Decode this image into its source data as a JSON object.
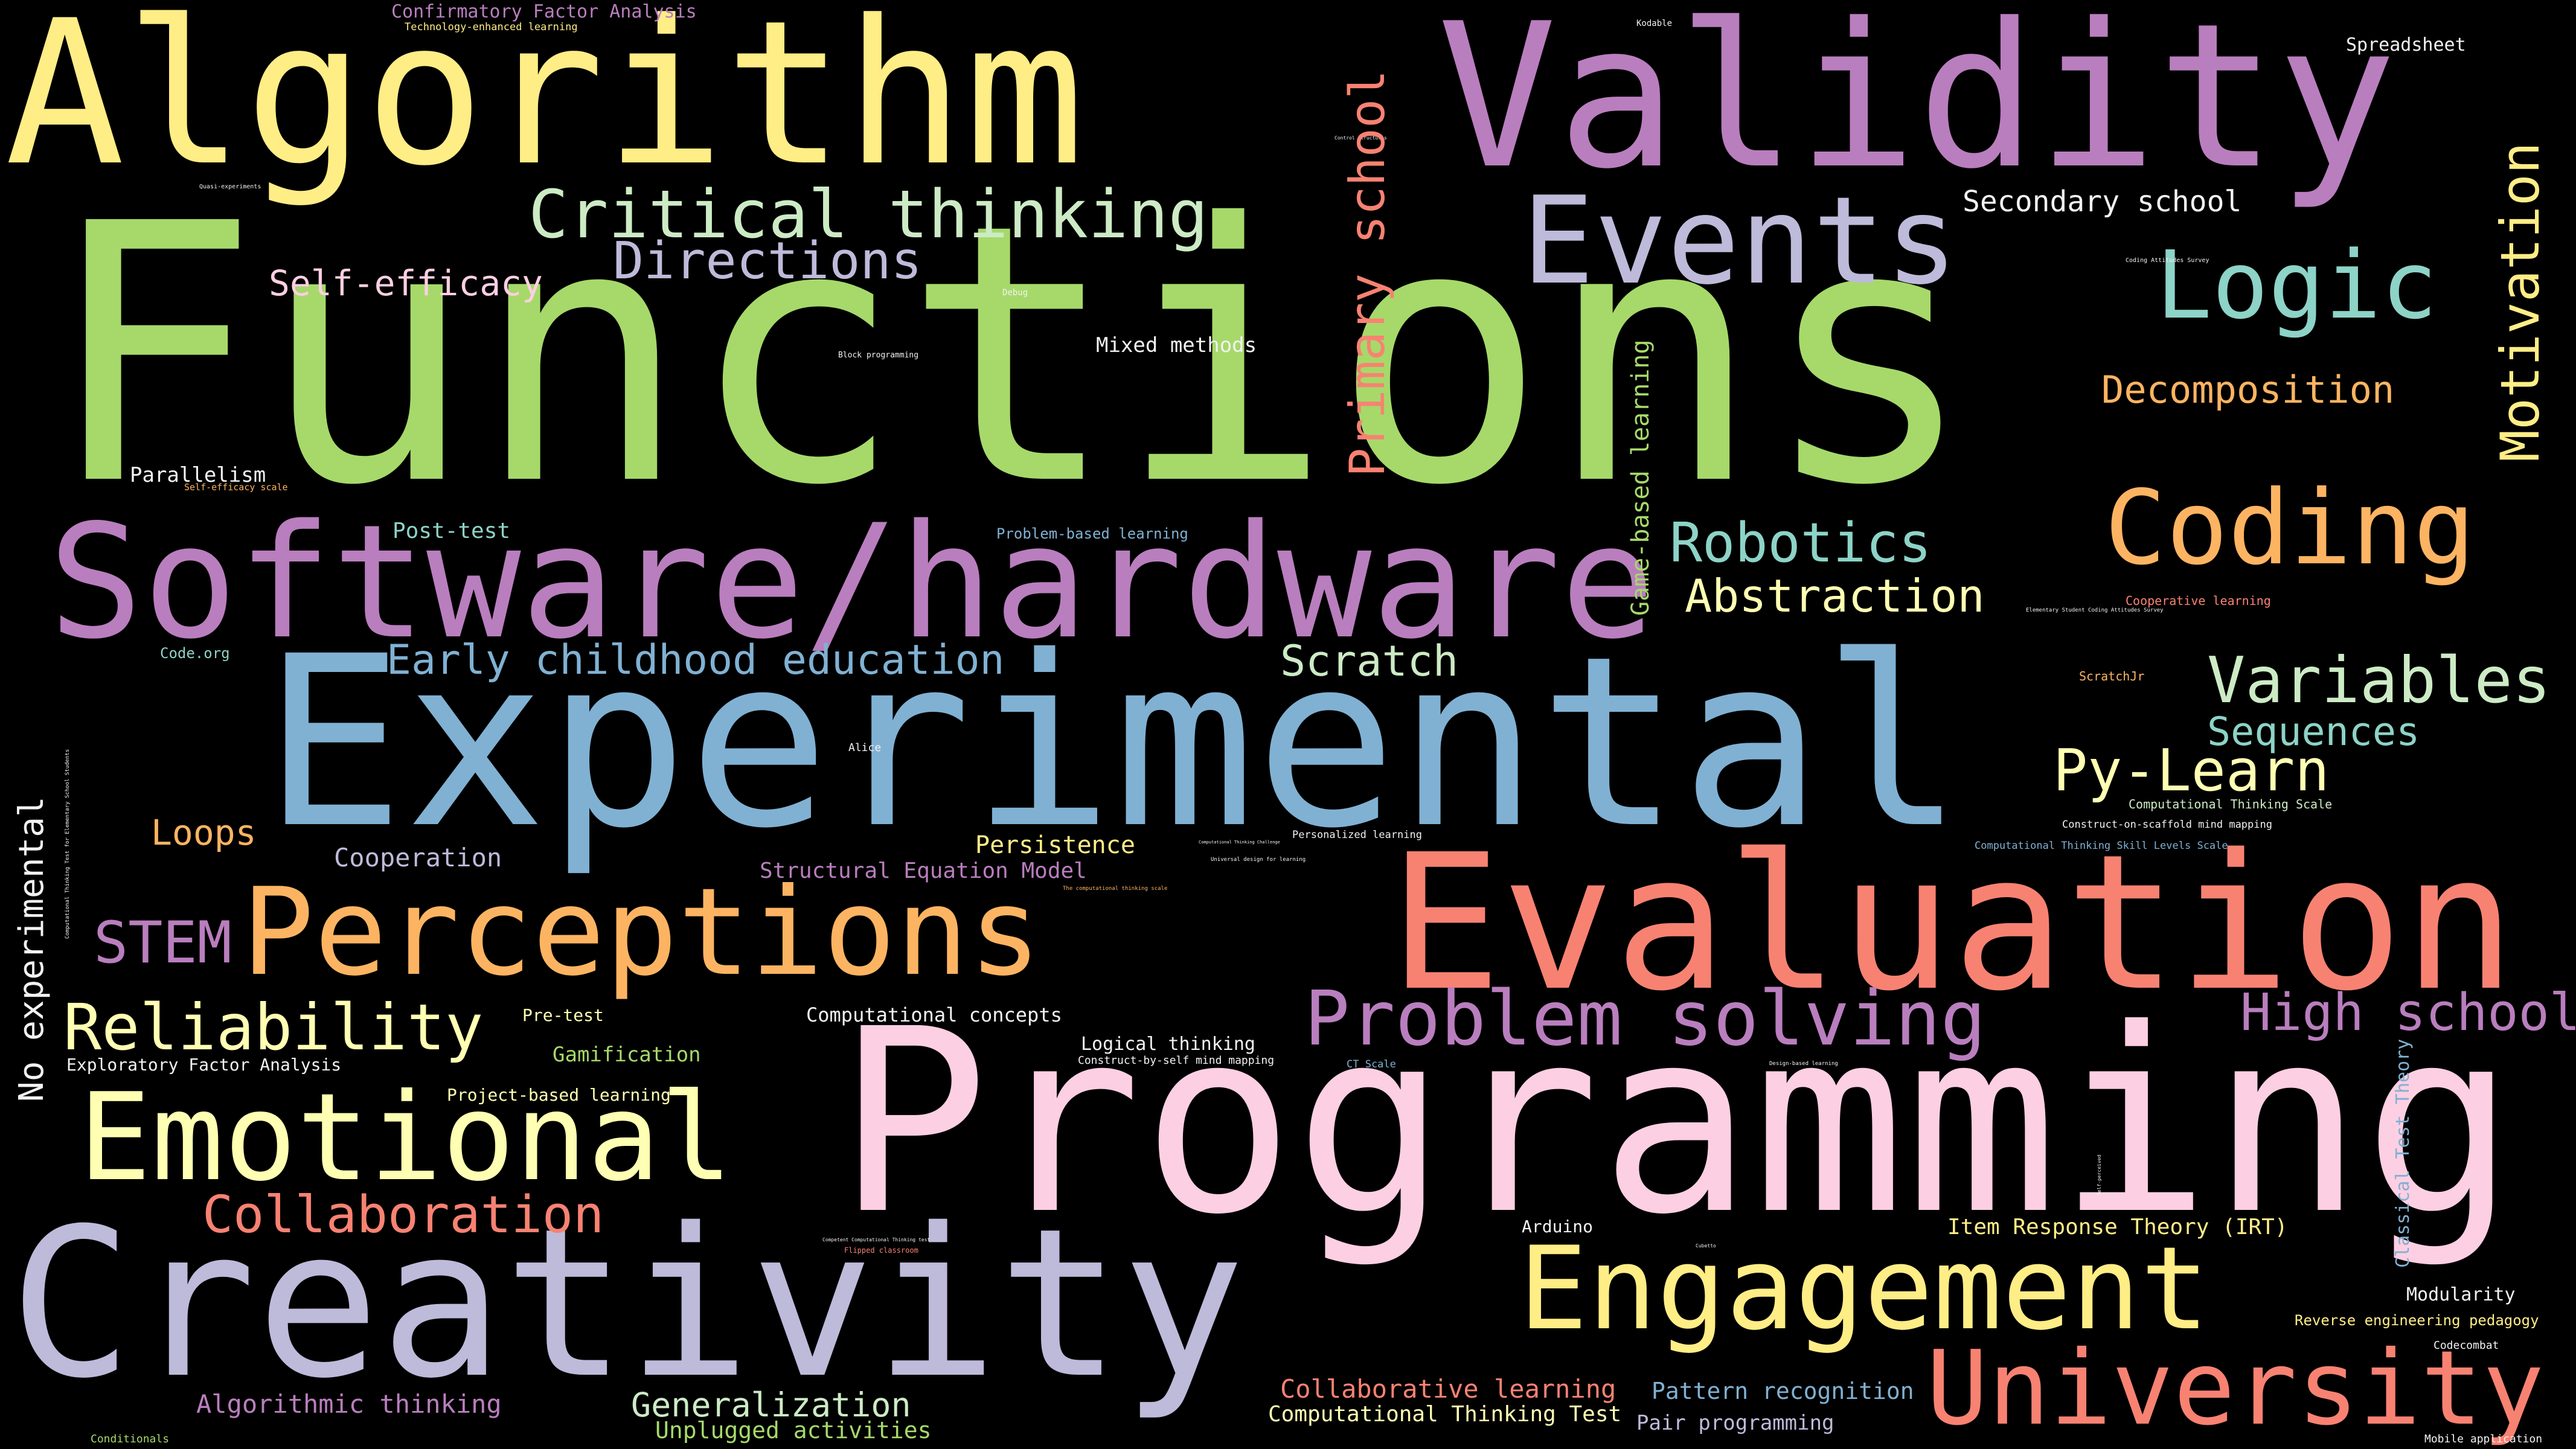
{
  "palette": {
    "yellow": "#FFED86",
    "purple": "#B97EBE",
    "green": "#A6D96A",
    "mint": "#BFE8D0",
    "lavender": "#BEBADA",
    "salmon": "#F88272",
    "orange": "#FDB462",
    "blue": "#80B1D3",
    "pink": "#FDCFE3",
    "cream": "#FFFFB3",
    "teal": "#8DD3C7",
    "lightgreen": "#CCEBC5",
    "white": "#F2F2F2"
  },
  "words": {
    "algorithm": "Algorithm",
    "validity": "Validity",
    "functions": "Functions",
    "critical_thinking": "Critical thinking",
    "primary_school": "Primary school",
    "events": "Events",
    "logic": "Logic",
    "motivation": "Motivation",
    "directions": "Directions",
    "self_efficacy": "Self-efficacy",
    "secondary_school": "Secondary school",
    "decomposition": "Decomposition",
    "mixed_methods": "Mixed methods",
    "coding": "Coding",
    "parallelism": "Parallelism",
    "software_hardware": "Software/hardware",
    "robotics": "Robotics",
    "abstraction": "Abstraction",
    "game_based_learning": "Game-based learning",
    "post_test": "Post-test",
    "problem_based_learning": "Problem-based learning",
    "experimental": "Experimental",
    "early_childhood_education": "Early childhood education",
    "scratch": "Scratch",
    "variables": "Variables",
    "sequences": "Sequences",
    "py_learn": "Py-Learn",
    "loops": "Loops",
    "cooperation": "Cooperation",
    "persistence": "Persistence",
    "structural_equation_model": "Structural Equation Model",
    "evaluation": "Evaluation",
    "stem": "STEM",
    "perceptions": "Perceptions",
    "no_experimental": "No experimental",
    "reliability": "Reliability",
    "problem_solving": "Problem solving",
    "high_school": "High school",
    "pre_test": "Pre-test",
    "computational_concepts": "Computational concepts",
    "gamification": "Gamification",
    "logical_thinking": "Logical thinking",
    "programming": "Programming",
    "exploratory_factor_analysis": "Exploratory Factor Analysis",
    "emotional": "Emotional",
    "project_based_learning": "Project-based learning",
    "collaboration": "Collaboration",
    "classical_test_theory": "Classical Test Theory",
    "item_response_theory": "Item Response Theory (IRT)",
    "arduino": "Arduino",
    "creativity": "Creativity",
    "engagement": "Engagement",
    "modularity": "Modularity",
    "reverse_engineering_pedagogy": "Reverse engineering pedagogy",
    "university": "University",
    "algorithmic_thinking": "Algorithmic thinking",
    "collaborative_learning": "Collaborative learning",
    "pattern_recognition": "Pattern recognition",
    "generalization": "Generalization",
    "computational_thinking_test": "Computational Thinking Test",
    "unplugged_activities": "Unplugged activities",
    "pair_programming": "Pair programming",
    "conditionals": "Conditionals",
    "mobile_application": "Mobile application",
    "confirmatory_factor_analysis": "Confirmatory Factor Analysis",
    "technology_enhanced_learning": "Technology-enhanced learning",
    "spreadsheet": "Spreadsheet",
    "kodable": "Kodable",
    "code_org": "Code.org",
    "self_efficacy_scale": "Self-efficacy scale",
    "cooperative_learning": "Cooperative learning",
    "scratchjr": "ScratchJr",
    "computational_thinking_scale": "Computational Thinking Scale",
    "construct_on_scaffold": "Construct-on-scaffold mind mapping",
    "computational_thinking_skill_levels_scale": "Computational Thinking Skill Levels Scale",
    "personalized_learning": "Personalized learning",
    "alice": "Alice",
    "construct_by_self": "Construct-by-self mind mapping",
    "ct_scale": "CT Scale",
    "codecombat": "Codecombat",
    "flipped_classroom": "Flipped classroom",
    "debug": "Debug",
    "block_programming": "Block programming",
    "quasi_experiments": "Quasi-experiments",
    "coding_attitudes_survey": "Coding Attitudes Survey",
    "design_based_learning": "Design-based learning",
    "universal_design": "Universal design for learning",
    "elementary_coding_survey": "Elementary Student Coding Attitudes Survey",
    "ct_test_elementary": "Computational Thinking Test for Elementary School Students",
    "the_ct_scale": "The computational thinking scale",
    "ct_challenge": "Computational Thinking Challenge",
    "control_structures": "Control structures",
    "competent_ct_test": "Competent Computational Thinking test",
    "cubetto": "Cubetto",
    "self_perceived": "Self-perceived"
  }
}
